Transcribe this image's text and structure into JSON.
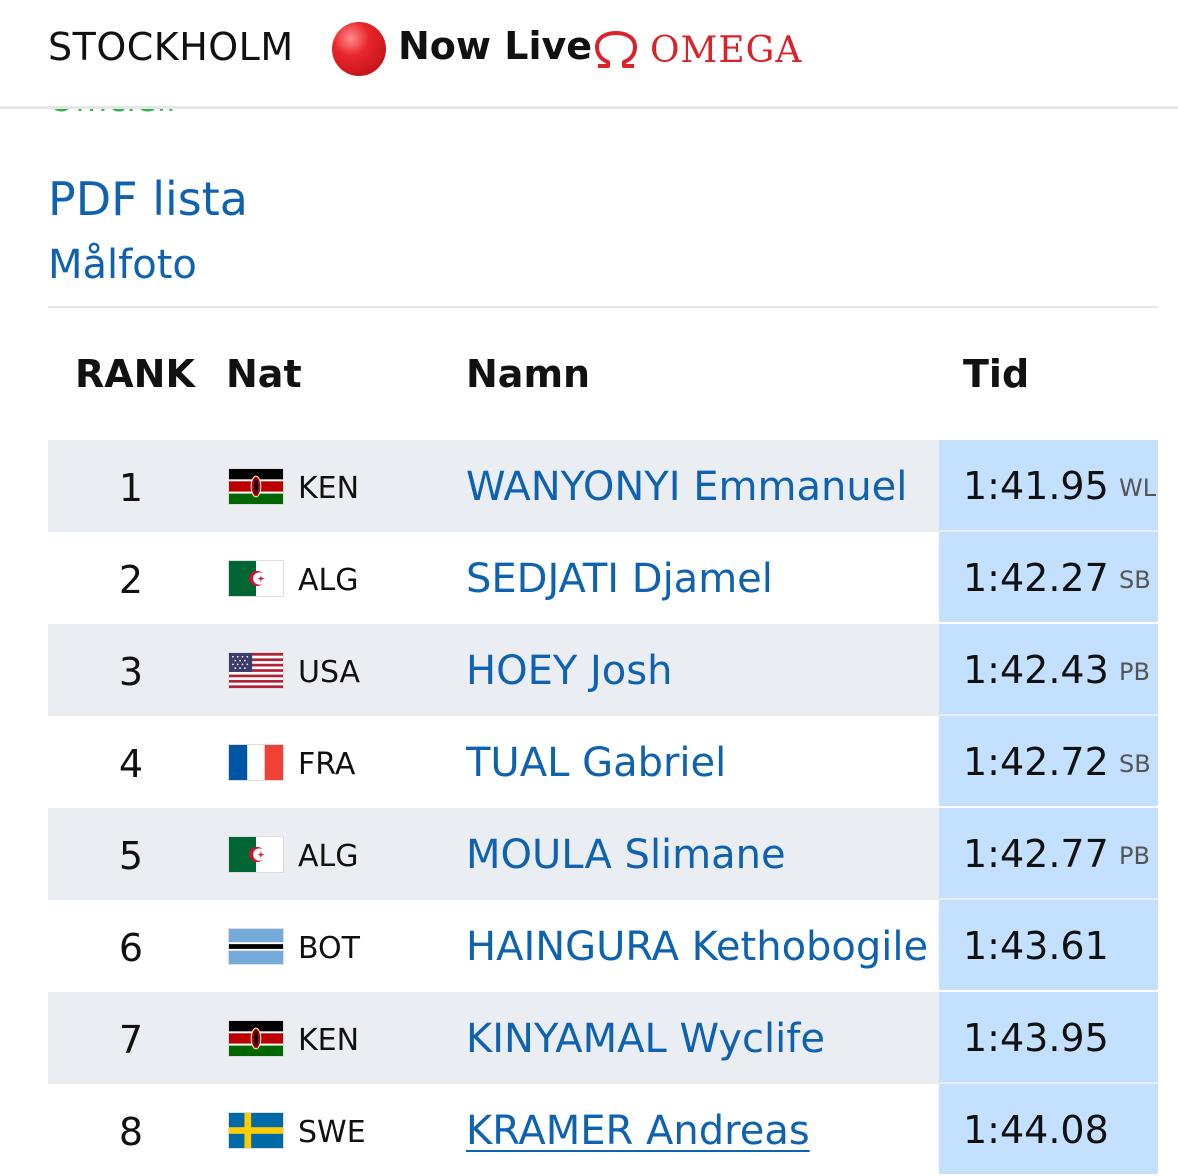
{
  "header": {
    "city": "STOCKHOLM",
    "live_label": "Now Live",
    "sponsor": "OMEGA"
  },
  "links": {
    "official_partial": "Officiell",
    "pdf": "PDF lista",
    "photo_finish": "Målfoto"
  },
  "table": {
    "headers": {
      "rank": "RANK",
      "nat": "Nat",
      "name": "Namn",
      "time": "Tid"
    },
    "rows": [
      {
        "rank": "1",
        "flag": "KEN",
        "nat": "KEN",
        "name": "WANYONYI Emmanuel",
        "time": "1:41.95",
        "note": "WL"
      },
      {
        "rank": "2",
        "flag": "ALG",
        "nat": "ALG",
        "name": "SEDJATI Djamel",
        "time": "1:42.27",
        "note": "SB"
      },
      {
        "rank": "3",
        "flag": "USA",
        "nat": "USA",
        "name": "HOEY Josh",
        "time": "1:42.43",
        "note": "PB"
      },
      {
        "rank": "4",
        "flag": "FRA",
        "nat": "FRA",
        "name": "TUAL Gabriel",
        "time": "1:42.72",
        "note": "SB"
      },
      {
        "rank": "5",
        "flag": "ALG",
        "nat": "ALG",
        "name": "MOULA Slimane",
        "time": "1:42.77",
        "note": "PB"
      },
      {
        "rank": "6",
        "flag": "BOT",
        "nat": "BOT",
        "name": "HAINGURA Kethobogile",
        "time": "1:43.61",
        "note": ""
      },
      {
        "rank": "7",
        "flag": "KEN",
        "nat": "KEN",
        "name": "KINYAMAL Wyclife",
        "time": "1:43.95",
        "note": ""
      },
      {
        "rank": "8",
        "flag": "SWE",
        "nat": "SWE",
        "name": "KRAMER Andreas",
        "time": "1:44.08",
        "note": ""
      }
    ]
  },
  "colors": {
    "link": "#0e62b0",
    "time_highlight": "#c4e0ff",
    "row_shade": "#eaedf2",
    "live_red": "#e8262b",
    "omega_red": "#d9222a"
  }
}
